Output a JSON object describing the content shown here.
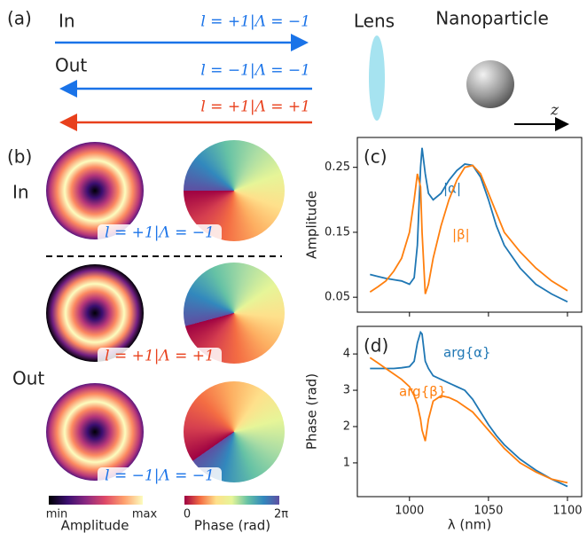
{
  "panel_a": {
    "label": "(a)",
    "in_label": "In",
    "out_label": "Out",
    "in_beam": "l = +1|Λ = −1",
    "out_beams": [
      "l = −1|Λ = −1",
      "l = +1|Λ = +1"
    ],
    "lens": "Lens",
    "particle": "Nanoparticle",
    "axis": "z"
  },
  "panel_b": {
    "label": "(b)",
    "in_label": "In",
    "out_label": "Out",
    "states": [
      "l = +1|Λ = −1",
      "l = +1|Λ = +1",
      "l = −1|Λ = −1"
    ],
    "amplitude_bar": {
      "min": "min",
      "max": "max",
      "title": "Amplitude"
    },
    "phase_bar": {
      "ticks": [
        "0",
        "2π"
      ],
      "title": "Phase (rad)"
    }
  },
  "chart_data": [
    {
      "type": "line",
      "panel": "(c)",
      "ylabel": "Amplitude",
      "x": [
        975,
        980,
        985,
        990,
        995,
        1000,
        1003,
        1005,
        1007,
        1008,
        1010,
        1012,
        1015,
        1020,
        1025,
        1030,
        1035,
        1040,
        1045,
        1050,
        1055,
        1060,
        1070,
        1080,
        1090,
        1100
      ],
      "xlim": [
        967,
        1109
      ],
      "ylim": [
        0.027,
        0.296
      ],
      "yticks": [
        0.05,
        0.15,
        0.25
      ],
      "series": [
        {
          "name": "|α|",
          "color": "#1f77b4",
          "values": [
            0.085,
            0.082,
            0.079,
            0.077,
            0.075,
            0.07,
            0.08,
            0.13,
            0.25,
            0.28,
            0.24,
            0.21,
            0.2,
            0.21,
            0.23,
            0.245,
            0.255,
            0.253,
            0.235,
            0.2,
            0.16,
            0.13,
            0.095,
            0.07,
            0.055,
            0.043
          ]
        },
        {
          "name": "|β|",
          "color": "#ff7f0e",
          "values": [
            0.058,
            0.066,
            0.075,
            0.09,
            0.11,
            0.15,
            0.2,
            0.24,
            0.22,
            0.15,
            0.055,
            0.07,
            0.11,
            0.16,
            0.2,
            0.23,
            0.25,
            0.253,
            0.24,
            0.21,
            0.18,
            0.15,
            0.12,
            0.095,
            0.075,
            0.06
          ]
        }
      ]
    },
    {
      "type": "line",
      "panel": "(d)",
      "ylabel": "Phase (rad)",
      "xlabel": "λ (nm)",
      "x": [
        975,
        980,
        985,
        990,
        995,
        1000,
        1003,
        1005,
        1007,
        1008,
        1010,
        1012,
        1015,
        1020,
        1025,
        1030,
        1035,
        1040,
        1045,
        1050,
        1055,
        1060,
        1070,
        1080,
        1090,
        1100
      ],
      "xlim": [
        967,
        1109
      ],
      "xticks": [
        1000,
        1050,
        1100
      ],
      "ylim": [
        0.07,
        4.76
      ],
      "yticks": [
        1,
        2,
        3,
        4
      ],
      "series": [
        {
          "name": "arg{α}",
          "color": "#1f77b4",
          "values": [
            3.6,
            3.6,
            3.6,
            3.6,
            3.62,
            3.65,
            3.8,
            4.3,
            4.6,
            4.55,
            3.8,
            3.6,
            3.4,
            3.3,
            3.2,
            3.1,
            3.0,
            2.75,
            2.4,
            2.05,
            1.75,
            1.5,
            1.1,
            0.8,
            0.55,
            0.35
          ]
        },
        {
          "name": "arg{β}",
          "color": "#ff7f0e",
          "values": [
            3.9,
            3.75,
            3.6,
            3.45,
            3.3,
            3.1,
            2.85,
            2.6,
            2.2,
            1.9,
            1.6,
            2.2,
            2.7,
            2.85,
            2.8,
            2.7,
            2.55,
            2.4,
            2.15,
            1.9,
            1.65,
            1.4,
            1.0,
            0.75,
            0.55,
            0.45
          ]
        }
      ]
    }
  ]
}
